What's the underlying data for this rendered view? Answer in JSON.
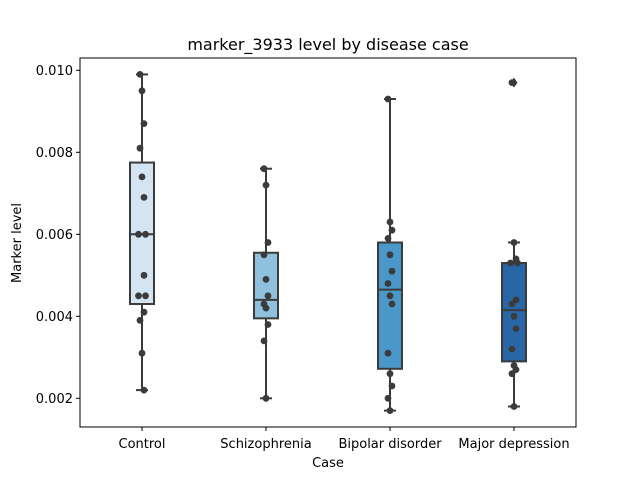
{
  "chart_data": {
    "type": "box",
    "title": "marker_3933 level by disease case",
    "xlabel": "Case",
    "ylabel": "Marker level",
    "ylim": [
      0.0013,
      0.0103
    ],
    "yticks": [
      0.002,
      0.004,
      0.006,
      0.008,
      0.01
    ],
    "ytick_labels": [
      "0.002",
      "0.004",
      "0.006",
      "0.008",
      "0.010"
    ],
    "grid": false,
    "categories": [
      "Control",
      "Schizophrenia",
      "Bipolar disorder",
      "Major depression"
    ],
    "colors": [
      "#d3e4f3",
      "#8fc1de",
      "#4a98c9",
      "#2866a8"
    ],
    "boxes": [
      {
        "q1": 0.0043,
        "median": 0.006,
        "q3": 0.00775,
        "whisker_low": 0.0022,
        "whisker_high": 0.0099,
        "outliers": []
      },
      {
        "q1": 0.00395,
        "median": 0.0044,
        "q3": 0.00555,
        "whisker_low": 0.002,
        "whisker_high": 0.0076,
        "outliers": []
      },
      {
        "q1": 0.00272,
        "median": 0.00465,
        "q3": 0.0058,
        "whisker_low": 0.0017,
        "whisker_high": 0.0093,
        "outliers": []
      },
      {
        "q1": 0.0029,
        "median": 0.00415,
        "q3": 0.0053,
        "whisker_low": 0.0018,
        "whisker_high": 0.0058,
        "outliers": [
          0.0097
        ]
      }
    ],
    "points": [
      [
        0.0099,
        0.0095,
        0.0087,
        0.0081,
        0.0074,
        0.0069,
        0.006,
        0.006,
        0.005,
        0.0045,
        0.0045,
        0.0041,
        0.0039,
        0.0031,
        0.0022
      ],
      [
        0.0076,
        0.0072,
        0.0058,
        0.0055,
        0.0049,
        0.0045,
        0.0043,
        0.0042,
        0.0038,
        0.0034,
        0.002
      ],
      [
        0.0093,
        0.0063,
        0.0061,
        0.0059,
        0.0055,
        0.0051,
        0.0048,
        0.0045,
        0.0043,
        0.0031,
        0.0026,
        0.0023,
        0.002,
        0.0017
      ],
      [
        0.0097,
        0.0058,
        0.0054,
        0.0053,
        0.0053,
        0.0044,
        0.0043,
        0.004,
        0.0037,
        0.0032,
        0.0028,
        0.0027,
        0.0026,
        0.0018
      ]
    ]
  }
}
